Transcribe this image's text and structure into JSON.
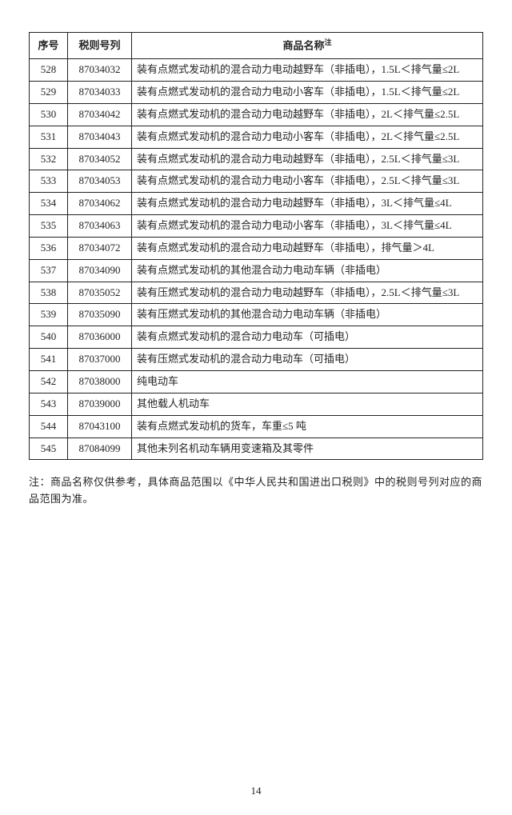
{
  "headers": {
    "seq": "序号",
    "code": "税则号列",
    "name": "商品名称",
    "name_sup": "注"
  },
  "rows": [
    {
      "seq": "528",
      "code": "87034032",
      "name": "装有点燃式发动机的混合动力电动越野车（非插电），1.5L＜排气量≤2L"
    },
    {
      "seq": "529",
      "code": "87034033",
      "name": "装有点燃式发动机的混合动力电动小客车（非插电），1.5L＜排气量≤2L"
    },
    {
      "seq": "530",
      "code": "87034042",
      "name": "装有点燃式发动机的混合动力电动越野车（非插电），2L＜排气量≤2.5L"
    },
    {
      "seq": "531",
      "code": "87034043",
      "name": "装有点燃式发动机的混合动力电动小客车（非插电），2L＜排气量≤2.5L"
    },
    {
      "seq": "532",
      "code": "87034052",
      "name": "装有点燃式发动机的混合动力电动越野车（非插电），2.5L＜排气量≤3L"
    },
    {
      "seq": "533",
      "code": "87034053",
      "name": "装有点燃式发动机的混合动力电动小客车（非插电），2.5L＜排气量≤3L"
    },
    {
      "seq": "534",
      "code": "87034062",
      "name": "装有点燃式发动机的混合动力电动越野车（非插电），3L＜排气量≤4L"
    },
    {
      "seq": "535",
      "code": "87034063",
      "name": "装有点燃式发动机的混合动力电动小客车（非插电），3L＜排气量≤4L"
    },
    {
      "seq": "536",
      "code": "87034072",
      "name": "装有点燃式发动机的混合动力电动越野车（非插电），排气量＞4L"
    },
    {
      "seq": "537",
      "code": "87034090",
      "name": "装有点燃式发动机的其他混合动力电动车辆（非插电）"
    },
    {
      "seq": "538",
      "code": "87035052",
      "name": "装有压燃式发动机的混合动力电动越野车（非插电），2.5L＜排气量≤3L"
    },
    {
      "seq": "539",
      "code": "87035090",
      "name": "装有压燃式发动机的其他混合动力电动车辆（非插电）"
    },
    {
      "seq": "540",
      "code": "87036000",
      "name": "装有点燃式发动机的混合动力电动车（可插电）"
    },
    {
      "seq": "541",
      "code": "87037000",
      "name": "装有压燃式发动机的混合动力电动车（可插电）"
    },
    {
      "seq": "542",
      "code": "87038000",
      "name": "纯电动车"
    },
    {
      "seq": "543",
      "code": "87039000",
      "name": "其他载人机动车"
    },
    {
      "seq": "544",
      "code": "87043100",
      "name": "装有点燃式发动机的货车，车重≤5 吨"
    },
    {
      "seq": "545",
      "code": "87084099",
      "name": "其他未列名机动车辆用变速箱及其零件"
    }
  ],
  "footnote": "注：商品名称仅供参考，具体商品范围以《中华人民共和国进出口税则》中的税则号列对应的商品范围为准。",
  "page_number": "14"
}
